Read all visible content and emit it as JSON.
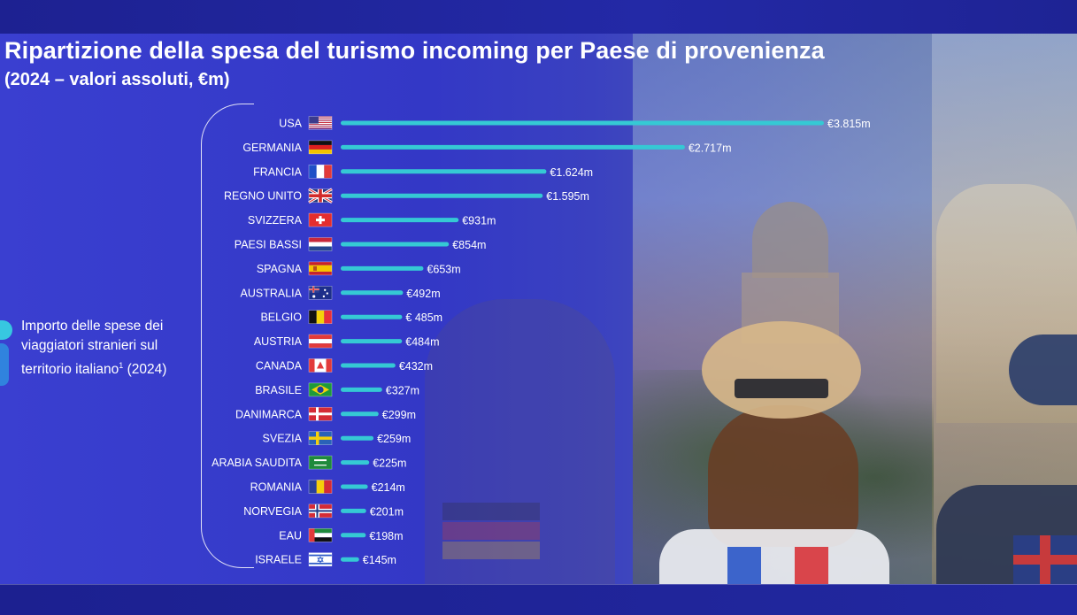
{
  "title": "Ripartizione della spesa del turismo incoming per Paese di provenienza",
  "subtitle": "(2024 – valori assoluti, €m)",
  "side_note": {
    "text": "Importo delle spese dei viaggiatori stranieri sul territorio italiano",
    "footnote_mark": "1",
    "year": " (2024)"
  },
  "colors": {
    "bar": "#35c9d4",
    "background": "#3338c6",
    "accent_dot": "#37c7e0"
  },
  "chart_data": {
    "type": "bar",
    "orientation": "horizontal",
    "title": "Ripartizione della spesa del turismo incoming per Paese di provenienza",
    "subtitle": "(2024 – valori assoluti, €m)",
    "unit": "€m",
    "categories": [
      "USA",
      "GERMANIA",
      "FRANCIA",
      "REGNO UNITO",
      "SVIZZERA",
      "PAESI BASSI",
      "SPAGNA",
      "AUSTRALIA",
      "BELGIO",
      "AUSTRIA",
      "CANADA",
      "BRASILE",
      "DANIMARCA",
      "SVEZIA",
      "ARABIA SAUDITA",
      "ROMANIA",
      "NORVEGIA",
      "EAU",
      "ISRAELE"
    ],
    "values": [
      3815,
      2717,
      1624,
      1595,
      931,
      854,
      653,
      492,
      485,
      484,
      432,
      327,
      299,
      259,
      225,
      214,
      201,
      198,
      145
    ],
    "value_labels": [
      "€3.815m",
      "€2.717m",
      "€1.624m",
      "€1.595m",
      "€931m",
      "€854m",
      "€653m",
      "€492m",
      "€ 485m",
      "€484m",
      "€432m",
      "€327m",
      "€299m",
      "€259m",
      "€225m",
      "€214m",
      "€201m",
      "€198m",
      "€145m"
    ],
    "flags": [
      "us-flag-icon",
      "germany-flag-icon",
      "france-flag-icon",
      "uk-flag-icon",
      "switzerland-flag-icon",
      "netherlands-flag-icon",
      "spain-flag-icon",
      "australia-flag-icon",
      "belgium-flag-icon",
      "austria-flag-icon",
      "canada-flag-icon",
      "brazil-flag-icon",
      "denmark-flag-icon",
      "sweden-flag-icon",
      "saudi-arabia-flag-icon",
      "romania-flag-icon",
      "norway-flag-icon",
      "uae-flag-icon",
      "israel-flag-icon"
    ],
    "xlim": [
      0,
      3815
    ],
    "grid": false,
    "legend": "none"
  }
}
